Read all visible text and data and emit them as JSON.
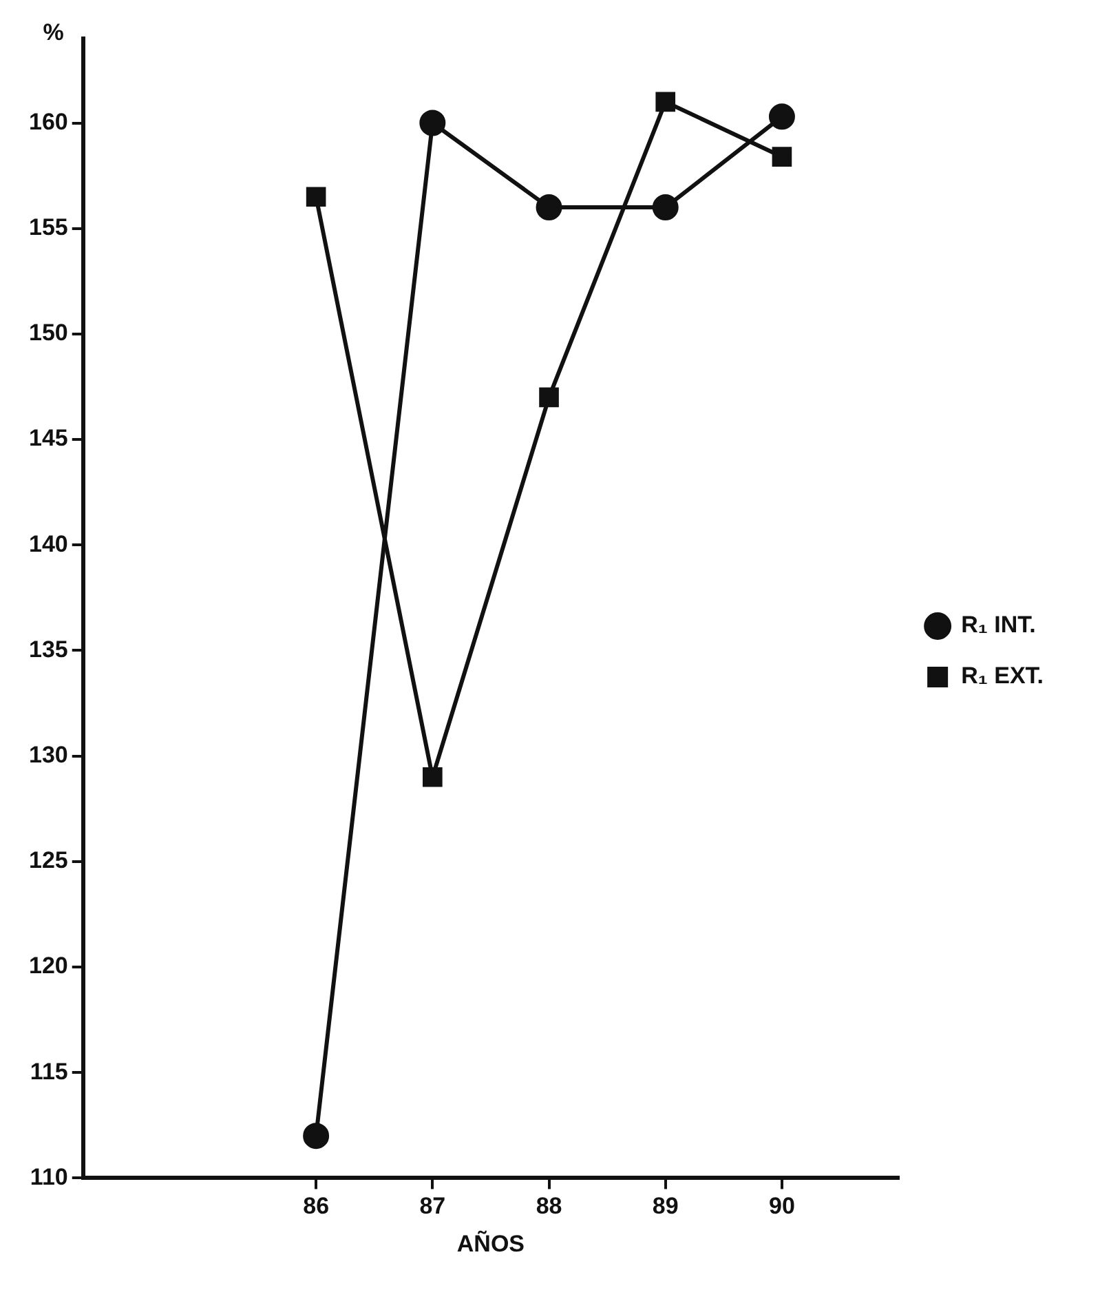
{
  "chart_data": {
    "type": "line",
    "xlabel": "AÑOS",
    "ylabel": "%",
    "x": [
      86,
      87,
      88,
      89,
      90
    ],
    "series": [
      {
        "name": "R₁ INT.",
        "color": "#111111",
        "marker": "circle",
        "values": [
          112,
          160,
          156,
          156,
          160.3
        ]
      },
      {
        "name": "R₁ EXT.",
        "color": "#111111",
        "marker": "square",
        "values": [
          156.5,
          129,
          147,
          161,
          158.4
        ]
      }
    ],
    "xlim": [
      84,
      91
    ],
    "xticks": [
      86,
      87,
      88,
      89,
      90
    ],
    "ylim": [
      110,
      164
    ],
    "yticks": [
      110,
      115,
      120,
      125,
      130,
      135,
      140,
      145,
      150,
      155,
      160
    ],
    "grid": false,
    "legend": "right",
    "line_style": "solid"
  }
}
